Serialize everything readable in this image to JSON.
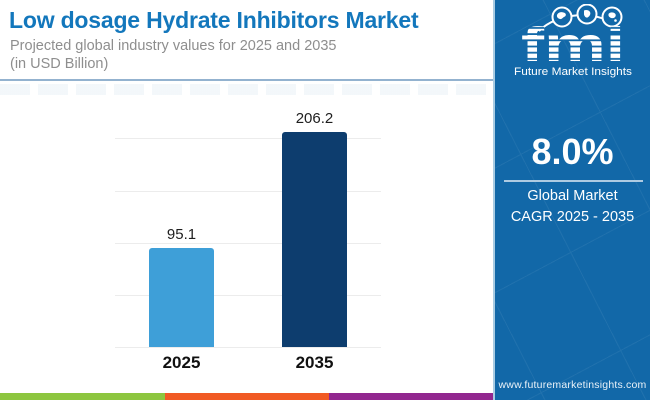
{
  "header": {
    "title": "Low dosage Hydrate Inhibitors Market",
    "subtitle_line1": "Projected global industry values for 2025 and 2035",
    "subtitle_line2": "(in USD Billion)"
  },
  "chart_data": {
    "type": "bar",
    "title": "Low dosage Hydrate Inhibitors Market",
    "subtitle": "Projected global industry values for 2025 and 2035 (in USD Billion)",
    "categories": [
      "2025",
      "2035"
    ],
    "values": [
      95.1,
      206.2
    ],
    "value_labels": [
      "95.1",
      "206.2"
    ],
    "unit": "USD Billion",
    "xlabel": "",
    "ylabel": "",
    "ylim": [
      0,
      210
    ],
    "gridline_values": [
      0,
      50,
      100,
      150,
      200
    ],
    "grid": "horizontal",
    "legend": "none",
    "bar_colors": [
      "#3e9fd8",
      "#0d3d6e"
    ]
  },
  "sidebar": {
    "logo_text": "fmi",
    "logo_tagline": "Future Market Insights",
    "cagr_value": "8.0%",
    "cagr_line1": "Global Market",
    "cagr_line2": "CAGR 2025 - 2035",
    "website": "www.futuremarketinsights.com"
  },
  "colors": {
    "panel_blue": "#1268a8",
    "title_blue": "#1377bc",
    "header_divider": "#93b2cf",
    "bar_2025": "#3e9fd8",
    "bar_2035": "#0d3d6e",
    "gridline": "#ececec"
  },
  "footer_stripes": [
    "#8dc63f",
    "#f15a24",
    "#92278f"
  ]
}
